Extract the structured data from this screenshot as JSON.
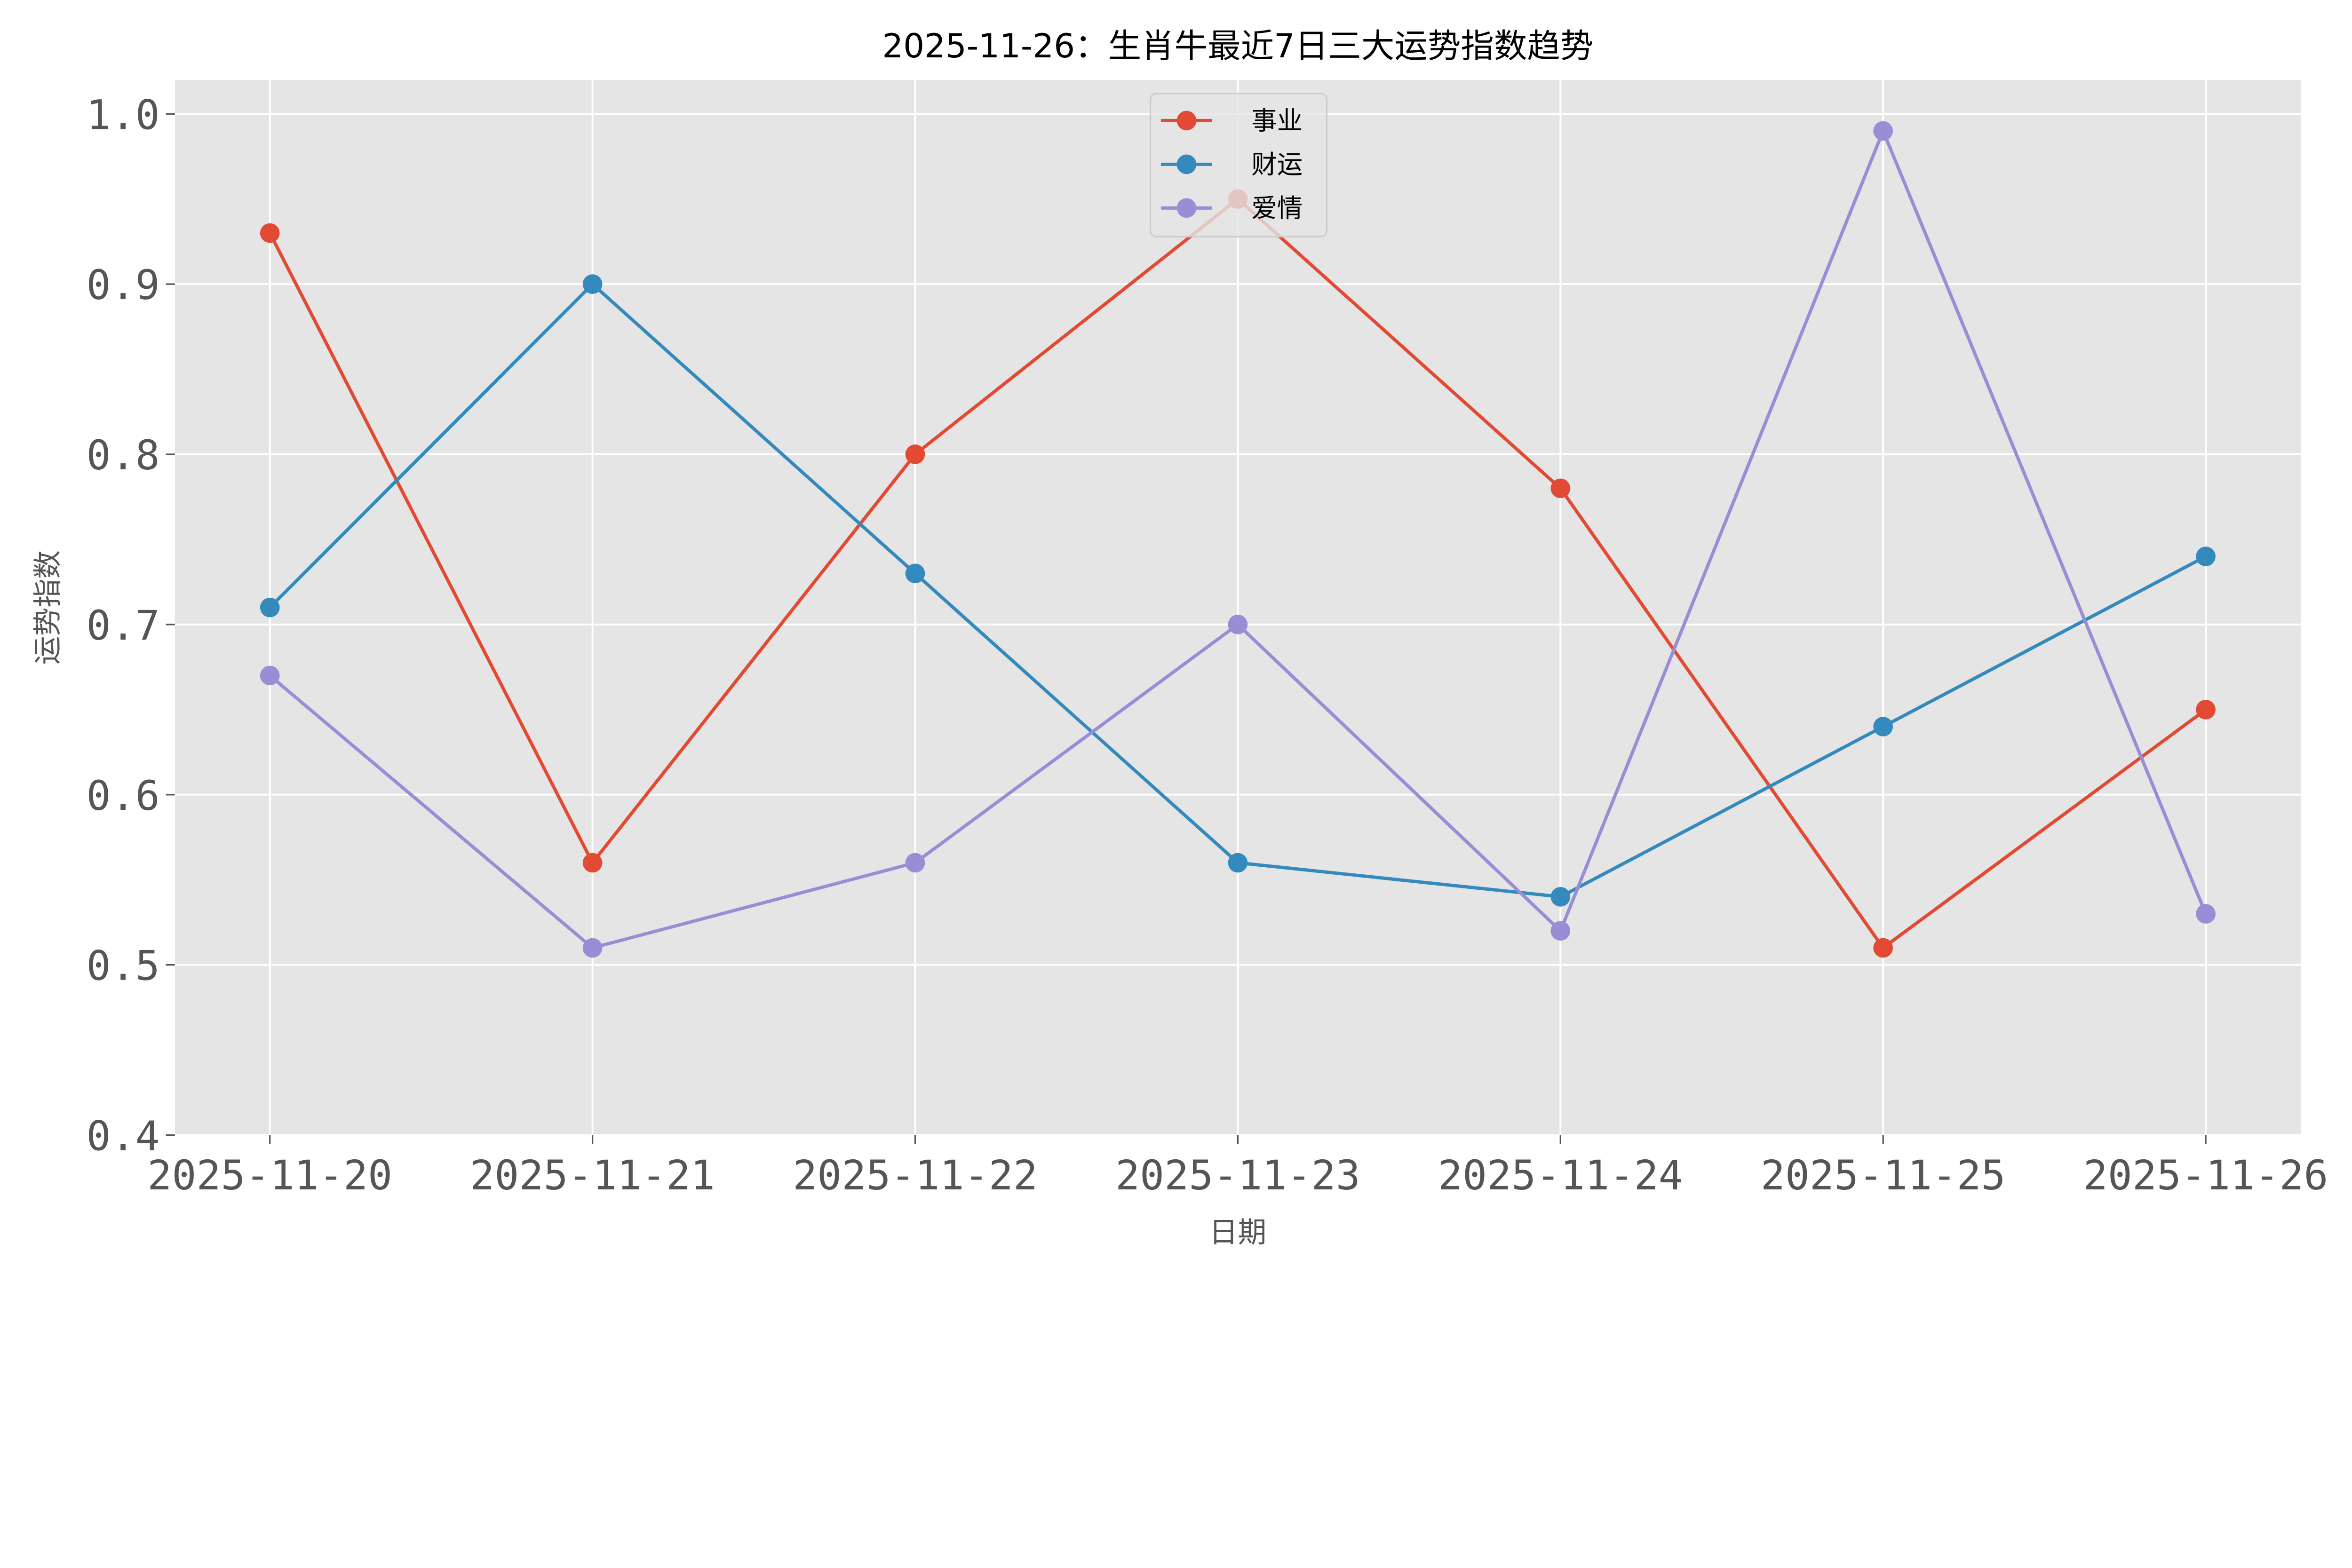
{
  "chart_data": {
    "type": "line",
    "title": "2025-11-26：生肖牛最近7日三大运势指数趋势",
    "xlabel": "日期",
    "ylabel": "运势指数",
    "categories": [
      "2025-11-20",
      "2025-11-21",
      "2025-11-22",
      "2025-11-23",
      "2025-11-24",
      "2025-11-25",
      "2025-11-26"
    ],
    "series": [
      {
        "name": "事业",
        "color": "#E24A33",
        "values": [
          0.93,
          0.56,
          0.8,
          0.95,
          0.78,
          0.51,
          0.65
        ]
      },
      {
        "name": "财运",
        "color": "#348ABD",
        "values": [
          0.71,
          0.9,
          0.73,
          0.56,
          0.54,
          0.64,
          0.74
        ]
      },
      {
        "name": "爱情",
        "color": "#988ED5",
        "values": [
          0.67,
          0.51,
          0.56,
          0.7,
          0.52,
          0.99,
          0.53
        ]
      }
    ],
    "yticks": [
      "0.4",
      "0.5",
      "0.6",
      "0.7",
      "0.8",
      "0.9",
      "1.0"
    ],
    "ylim": [
      0.4,
      1.02
    ],
    "grid": true,
    "marker": "circle",
    "legend": "top-center",
    "background": "#E5E5E5"
  }
}
